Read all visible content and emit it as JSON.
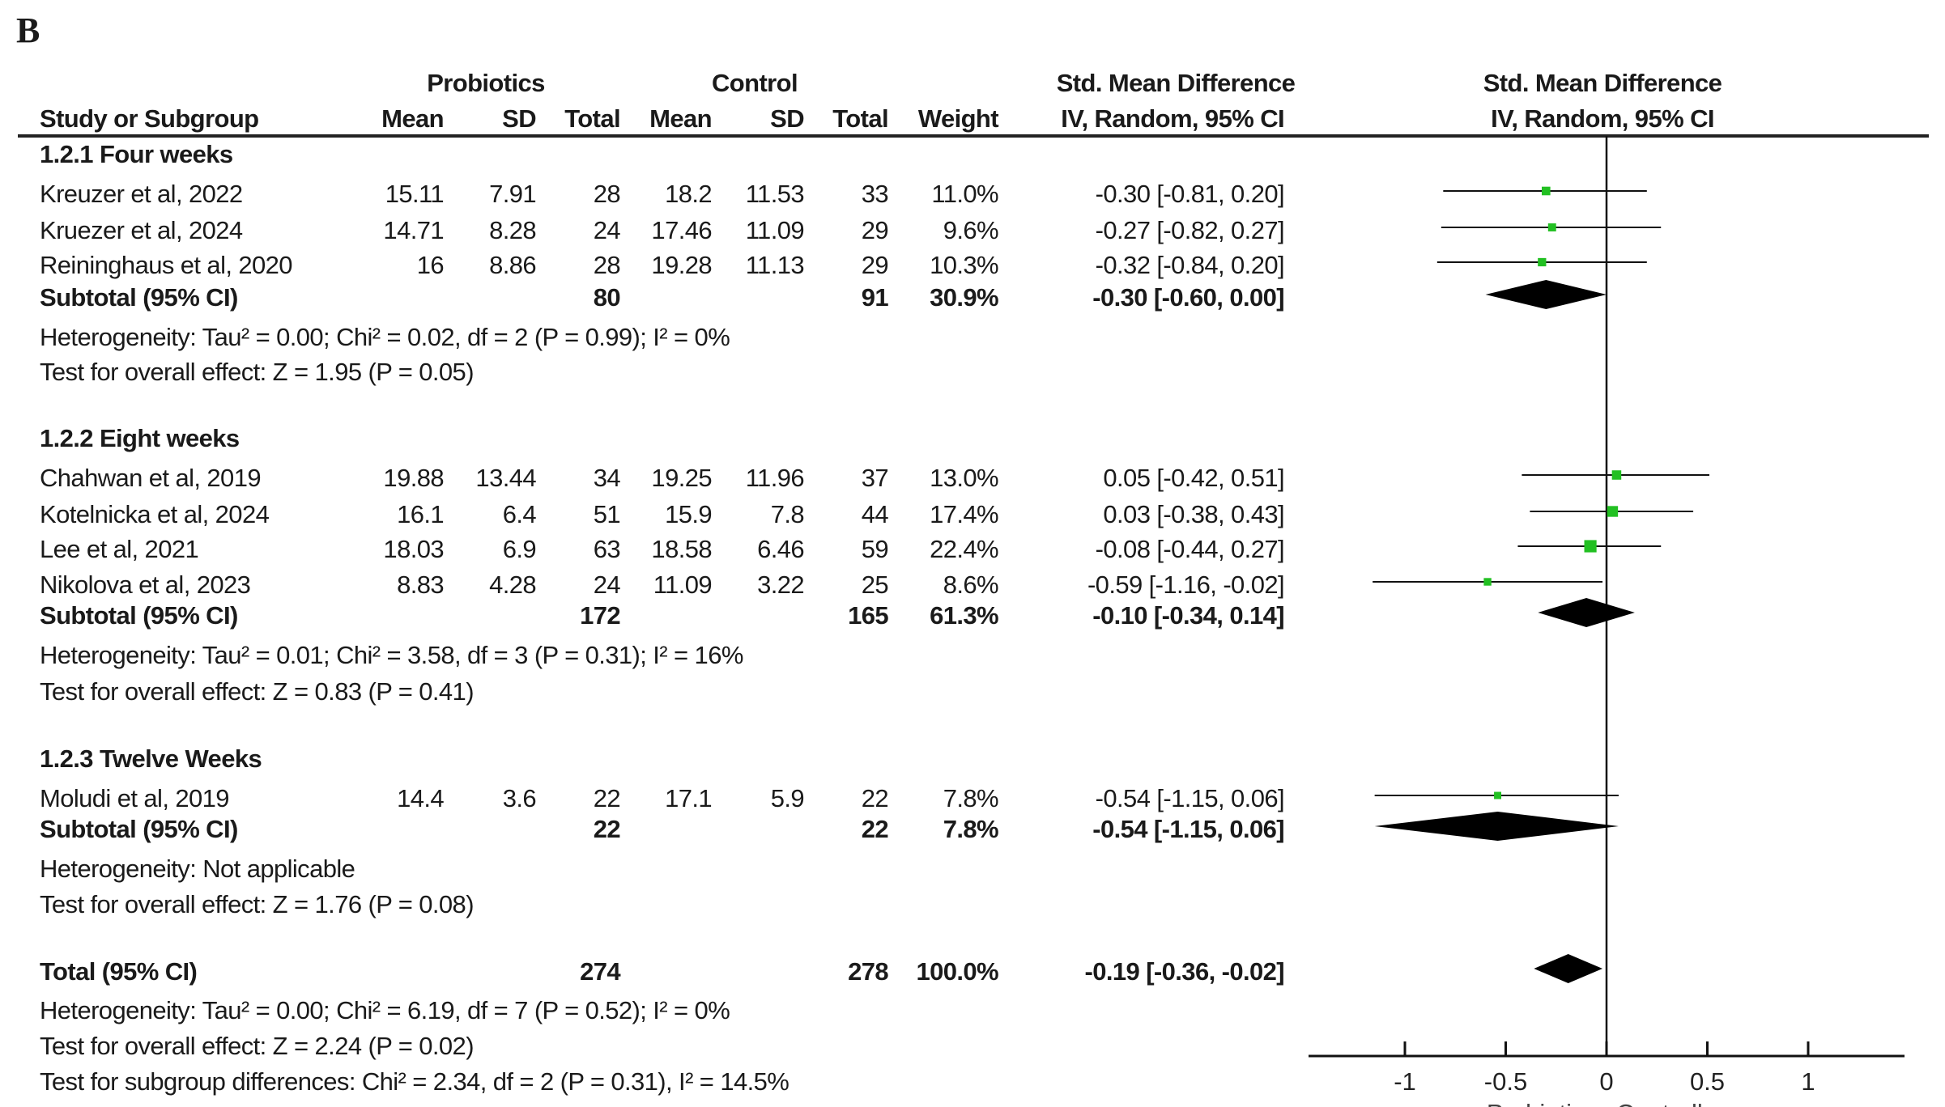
{
  "panel_label": "B",
  "header": {
    "probiotics": "Probiotics",
    "control": "Control",
    "smd": "Std. Mean Difference",
    "smd_plot": "Std. Mean Difference",
    "study": "Study or Subgroup",
    "mean": "Mean",
    "sd": "SD",
    "total": "Total",
    "mean2": "Mean",
    "sd2": "SD",
    "total2": "Total",
    "weight": "Weight",
    "method": "IV, Random, 95% CI",
    "method_plot": "IV, Random, 95% CI"
  },
  "groups": [
    {
      "title": "1.2.1 Four weeks",
      "studies": [
        {
          "name": "Kreuzer et al, 2022",
          "m1": "15.11",
          "sd1": "7.91",
          "n1": "28",
          "m2": "18.2",
          "sd2": "11.53",
          "n2": "33",
          "w": "11.0%",
          "ci": "-0.30 [-0.81, 0.20]"
        },
        {
          "name": "Kruezer et al, 2024",
          "m1": "14.71",
          "sd1": "8.28",
          "n1": "24",
          "m2": "17.46",
          "sd2": "11.09",
          "n2": "29",
          "w": "9.6%",
          "ci": "-0.27 [-0.82, 0.27]"
        },
        {
          "name": "Reininghaus et al, 2020",
          "m1": "16",
          "sd1": "8.86",
          "n1": "28",
          "m2": "19.28",
          "sd2": "11.13",
          "n2": "29",
          "w": "10.3%",
          "ci": "-0.32 [-0.84, 0.20]"
        }
      ],
      "subtotal": {
        "label": "Subtotal (95% CI)",
        "n1": "80",
        "n2": "91",
        "w": "30.9%",
        "ci": "-0.30 [-0.60, 0.00]"
      },
      "het": "Heterogeneity: Tau² = 0.00; Chi² = 0.02, df = 2 (P = 0.99); I² = 0%",
      "test": "Test for overall effect: Z = 1.95 (P = 0.05)"
    },
    {
      "title": "1.2.2 Eight weeks",
      "studies": [
        {
          "name": "Chahwan et al, 2019",
          "m1": "19.88",
          "sd1": "13.44",
          "n1": "34",
          "m2": "19.25",
          "sd2": "11.96",
          "n2": "37",
          "w": "13.0%",
          "ci": "0.05 [-0.42, 0.51]"
        },
        {
          "name": "Kotelnicka et al, 2024",
          "m1": "16.1",
          "sd1": "6.4",
          "n1": "51",
          "m2": "15.9",
          "sd2": "7.8",
          "n2": "44",
          "w": "17.4%",
          "ci": "0.03 [-0.38, 0.43]"
        },
        {
          "name": "Lee et al, 2021",
          "m1": "18.03",
          "sd1": "6.9",
          "n1": "63",
          "m2": "18.58",
          "sd2": "6.46",
          "n2": "59",
          "w": "22.4%",
          "ci": "-0.08 [-0.44, 0.27]"
        },
        {
          "name": "Nikolova et al, 2023",
          "m1": "8.83",
          "sd1": "4.28",
          "n1": "24",
          "m2": "11.09",
          "sd2": "3.22",
          "n2": "25",
          "w": "8.6%",
          "ci": "-0.59 [-1.16, -0.02]"
        }
      ],
      "subtotal": {
        "label": "Subtotal (95% CI)",
        "n1": "172",
        "n2": "165",
        "w": "61.3%",
        "ci": "-0.10 [-0.34, 0.14]"
      },
      "het": "Heterogeneity: Tau² = 0.01; Chi² = 3.58, df = 3 (P = 0.31); I² = 16%",
      "test": "Test for overall effect: Z = 0.83 (P = 0.41)"
    },
    {
      "title": "1.2.3 Twelve Weeks",
      "studies": [
        {
          "name": "Moludi et al, 2019",
          "m1": "14.4",
          "sd1": "3.6",
          "n1": "22",
          "m2": "17.1",
          "sd2": "5.9",
          "n2": "22",
          "w": "7.8%",
          "ci": "-0.54 [-1.15, 0.06]"
        }
      ],
      "subtotal": {
        "label": "Subtotal (95% CI)",
        "n1": "22",
        "n2": "22",
        "w": "7.8%",
        "ci": "-0.54 [-1.15, 0.06]"
      },
      "het": "Heterogeneity: Not applicable",
      "test": "Test for overall effect: Z = 1.76 (P = 0.08)"
    }
  ],
  "total": {
    "label": "Total (95% CI)",
    "n1": "274",
    "n2": "278",
    "w": "100.0%",
    "ci": "-0.19 [-0.36, -0.02]",
    "het": "Heterogeneity: Tau² = 0.00; Chi² = 6.19, df = 7 (P = 0.52); I² = 0%",
    "test": "Test for overall effect: Z = 2.24 (P = 0.02)",
    "subgroup": "Test for subgroup differences: Chi² = 2.34, df = 2 (P = 0.31), I² = 14.5%"
  },
  "chart_data": {
    "type": "forest",
    "xlim": [
      -1.5,
      1.5
    ],
    "xticks": [
      "-1",
      "-0.5",
      "0",
      "0.5",
      "1"
    ],
    "xtick_values": [
      -1,
      -0.5,
      0,
      0.5,
      1
    ],
    "left_label": "Probiotics",
    "right_label": "Controll",
    "square_color": "#22c022",
    "studies": [
      {
        "name": "Kreuzer et al, 2022",
        "est": -0.3,
        "lo": -0.81,
        "hi": 0.2,
        "weight": 11.0
      },
      {
        "name": "Kruezer et al, 2024",
        "est": -0.27,
        "lo": -0.82,
        "hi": 0.27,
        "weight": 9.6
      },
      {
        "name": "Reininghaus et al, 2020",
        "est": -0.32,
        "lo": -0.84,
        "hi": 0.2,
        "weight": 10.3
      },
      {
        "name": "Chahwan et al, 2019",
        "est": 0.05,
        "lo": -0.42,
        "hi": 0.51,
        "weight": 13.0
      },
      {
        "name": "Kotelnicka et al, 2024",
        "est": 0.03,
        "lo": -0.38,
        "hi": 0.43,
        "weight": 17.4
      },
      {
        "name": "Lee et al, 2021",
        "est": -0.08,
        "lo": -0.44,
        "hi": 0.27,
        "weight": 22.4
      },
      {
        "name": "Nikolova et al, 2023",
        "est": -0.59,
        "lo": -1.16,
        "hi": -0.02,
        "weight": 8.6
      },
      {
        "name": "Moludi et al, 2019",
        "est": -0.54,
        "lo": -1.15,
        "hi": 0.06,
        "weight": 7.8
      }
    ],
    "diamonds": [
      {
        "name": "Subtotal 1.2.1",
        "est": -0.3,
        "lo": -0.6,
        "hi": 0.0
      },
      {
        "name": "Subtotal 1.2.2",
        "est": -0.1,
        "lo": -0.34,
        "hi": 0.14
      },
      {
        "name": "Subtotal 1.2.3",
        "est": -0.54,
        "lo": -1.15,
        "hi": 0.06
      },
      {
        "name": "Total",
        "est": -0.19,
        "lo": -0.36,
        "hi": -0.02
      }
    ]
  }
}
